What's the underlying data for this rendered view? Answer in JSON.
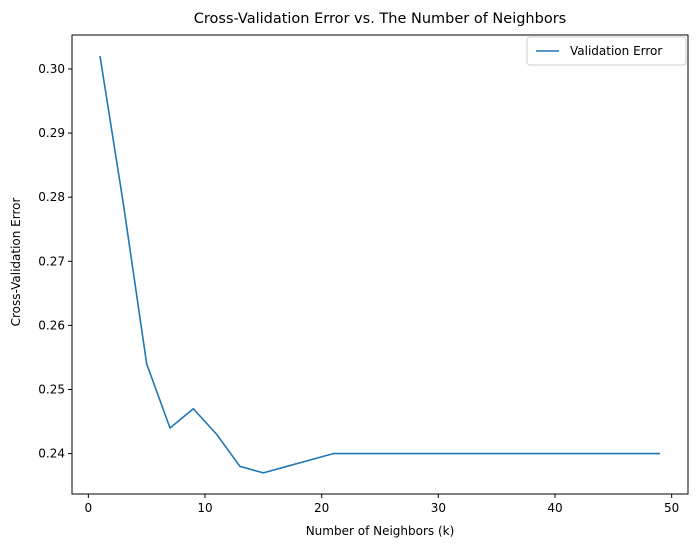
{
  "chart_data": {
    "type": "line",
    "title": "Cross-Validation Error vs. The Number of Neighbors",
    "xlabel": "Number of Neighbors (k)",
    "ylabel": "Cross-Validation Error",
    "xlim": [
      -1.4,
      51.4
    ],
    "ylim": [
      0.2337,
      0.3053
    ],
    "xticks": [
      0,
      10,
      20,
      30,
      40,
      50
    ],
    "yticks": [
      0.24,
      0.25,
      0.26,
      0.27,
      0.28,
      0.29,
      0.3
    ],
    "ytick_labels": [
      "0.24",
      "0.25",
      "0.26",
      "0.27",
      "0.28",
      "0.29",
      "0.30"
    ],
    "grid": false,
    "legend": {
      "position": "top-right"
    },
    "series": [
      {
        "name": "Validation Error",
        "color": "#1f77b4",
        "x": [
          1,
          3,
          5,
          7,
          9,
          11,
          13,
          15,
          17,
          19,
          21,
          23,
          25,
          27,
          29,
          31,
          33,
          35,
          37,
          39,
          41,
          43,
          45,
          47,
          49
        ],
        "y": [
          0.302,
          0.279,
          0.254,
          0.244,
          0.247,
          0.243,
          0.238,
          0.237,
          0.238,
          0.239,
          0.24,
          0.24,
          0.24,
          0.24,
          0.24,
          0.24,
          0.24,
          0.24,
          0.24,
          0.24,
          0.24,
          0.24,
          0.24,
          0.24,
          0.24
        ]
      }
    ]
  }
}
